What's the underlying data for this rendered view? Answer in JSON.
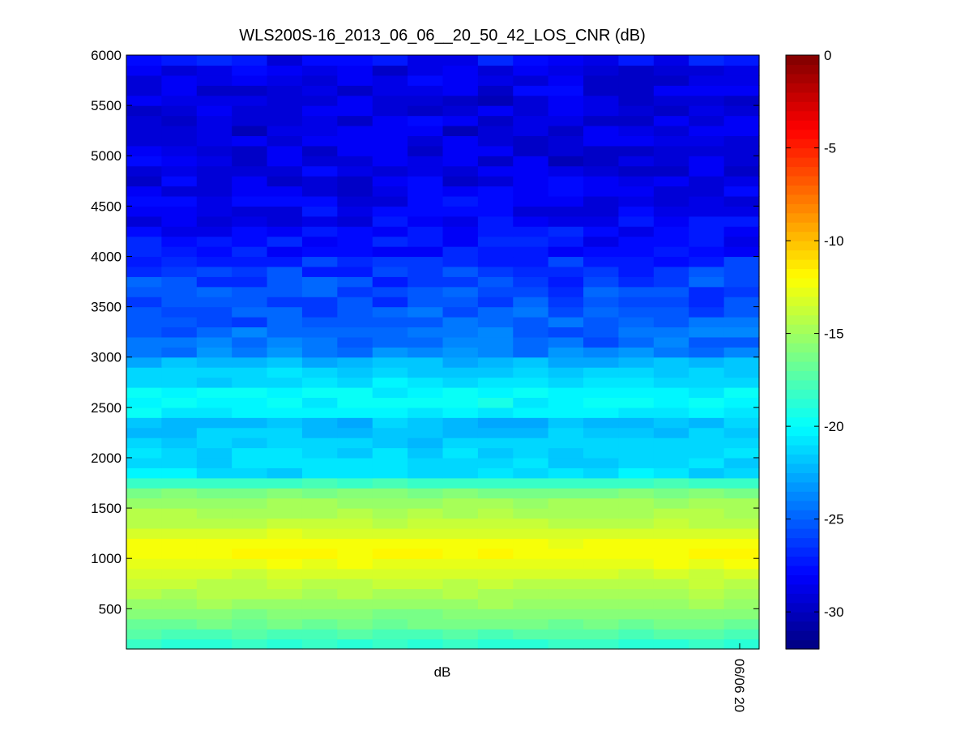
{
  "chart_data": {
    "type": "heatmap",
    "title": "WLS200S-16_2013_06_06__20_50_42_LOS_CNR (dB)",
    "xlabel": "dB",
    "ylabel": "",
    "x_ticks": [
      "06/06 20"
    ],
    "ylim": [
      100,
      6000
    ],
    "y_ticks": [
      500,
      1000,
      1500,
      2000,
      2500,
      3000,
      3500,
      4000,
      4500,
      5000,
      5500,
      6000
    ],
    "colorbar": {
      "range": [
        -32,
        0
      ],
      "ticks": [
        0,
        -5,
        -10,
        -15,
        -20,
        -25,
        -30
      ],
      "colormap": "jet"
    },
    "columns": 18,
    "profile": [
      {
        "range": 150,
        "cnr": -18.5
      },
      {
        "range": 250,
        "cnr": -17.5
      },
      {
        "range": 350,
        "cnr": -16.5
      },
      {
        "range": 450,
        "cnr": -15.8
      },
      {
        "range": 550,
        "cnr": -15.2
      },
      {
        "range": 650,
        "cnr": -14.6
      },
      {
        "range": 750,
        "cnr": -14.0
      },
      {
        "range": 850,
        "cnr": -13.4
      },
      {
        "range": 950,
        "cnr": -12.7
      },
      {
        "range": 1050,
        "cnr": -12.0
      },
      {
        "range": 1150,
        "cnr": -12.3
      },
      {
        "range": 1250,
        "cnr": -13.2
      },
      {
        "range": 1350,
        "cnr": -14.0
      },
      {
        "range": 1450,
        "cnr": -14.6
      },
      {
        "range": 1550,
        "cnr": -15.1
      },
      {
        "range": 1650,
        "cnr": -16.0
      },
      {
        "range": 1750,
        "cnr": -18.2
      },
      {
        "range": 1850,
        "cnr": -21.0
      },
      {
        "range": 1950,
        "cnr": -21.3
      },
      {
        "range": 2050,
        "cnr": -21.2
      },
      {
        "range": 2150,
        "cnr": -21.5
      },
      {
        "range": 2250,
        "cnr": -21.8
      },
      {
        "range": 2350,
        "cnr": -22.0
      },
      {
        "range": 2450,
        "cnr": -20.5
      },
      {
        "range": 2550,
        "cnr": -20.0
      },
      {
        "range": 2650,
        "cnr": -20.1
      },
      {
        "range": 2750,
        "cnr": -21.0
      },
      {
        "range": 2850,
        "cnr": -21.5
      },
      {
        "range": 2950,
        "cnr": -22.2
      },
      {
        "range": 3050,
        "cnr": -23.8
      },
      {
        "range": 3150,
        "cnr": -24.5
      },
      {
        "range": 3250,
        "cnr": -24.8
      },
      {
        "range": 3350,
        "cnr": -25.0
      },
      {
        "range": 3450,
        "cnr": -25.3
      },
      {
        "range": 3550,
        "cnr": -25.6
      },
      {
        "range": 3650,
        "cnr": -25.8
      },
      {
        "range": 3750,
        "cnr": -26.0
      },
      {
        "range": 3850,
        "cnr": -26.3
      },
      {
        "range": 3950,
        "cnr": -26.8
      },
      {
        "range": 4050,
        "cnr": -27.3
      },
      {
        "range": 4150,
        "cnr": -27.6
      },
      {
        "range": 4250,
        "cnr": -28.0
      },
      {
        "range": 4350,
        "cnr": -28.2
      },
      {
        "range": 4450,
        "cnr": -28.4
      },
      {
        "range": 4550,
        "cnr": -28.5
      },
      {
        "range": 4650,
        "cnr": -28.6
      },
      {
        "range": 4750,
        "cnr": -28.8
      },
      {
        "range": 4850,
        "cnr": -28.9
      },
      {
        "range": 4950,
        "cnr": -29.0
      },
      {
        "range": 5050,
        "cnr": -29.0
      },
      {
        "range": 5150,
        "cnr": -29.0
      },
      {
        "range": 5250,
        "cnr": -29.1
      },
      {
        "range": 5350,
        "cnr": -29.0
      },
      {
        "range": 5450,
        "cnr": -29.0
      },
      {
        "range": 5550,
        "cnr": -29.0
      },
      {
        "range": 5650,
        "cnr": -28.9
      },
      {
        "range": 5750,
        "cnr": -28.8
      },
      {
        "range": 5850,
        "cnr": -28.6
      },
      {
        "range": 5950,
        "cnr": -28.0
      }
    ]
  }
}
